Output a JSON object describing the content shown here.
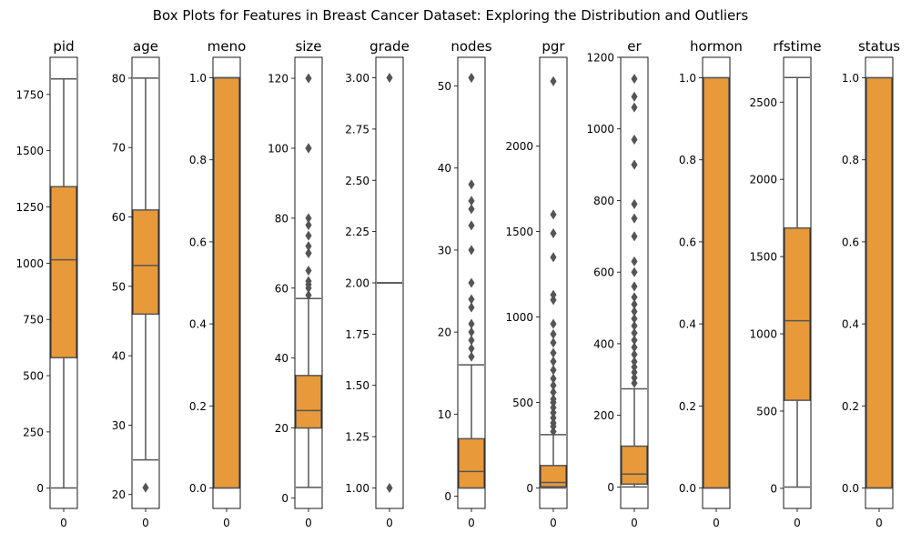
{
  "suptitle": "Box Plots for Features in Breast Cancer Dataset: Exploring the Distribution and Outliers",
  "style": {
    "box_color": "#e8993a",
    "line_color": "#555555",
    "axis_color": "#000000",
    "outlier_color": "#555555"
  },
  "chart_data": [
    {
      "type": "box",
      "title": "pid",
      "category": "0",
      "ylim": [
        -90,
        1915
      ],
      "ticks": [
        0,
        250,
        500,
        750,
        1000,
        1250,
        1500,
        1750
      ],
      "tick_labels": [
        "0",
        "250",
        "500",
        "750",
        "1000",
        "1250",
        "1500",
        "1750"
      ],
      "whisker_low": 1,
      "q1": 580,
      "median": 1015,
      "q3": 1340,
      "whisker_high": 1819,
      "outliers": []
    },
    {
      "type": "box",
      "title": "age",
      "category": "0",
      "ylim": [
        18,
        83
      ],
      "ticks": [
        20,
        30,
        40,
        50,
        60,
        70,
        80
      ],
      "tick_labels": [
        "20",
        "30",
        "40",
        "50",
        "60",
        "70",
        "80"
      ],
      "whisker_low": 25,
      "q1": 46,
      "median": 53,
      "q3": 61,
      "whisker_high": 80,
      "outliers": [
        21
      ]
    },
    {
      "type": "box",
      "title": "meno",
      "category": "0",
      "ylim": [
        -0.05,
        1.05
      ],
      "ticks": [
        0.0,
        0.2,
        0.4,
        0.6,
        0.8,
        1.0
      ],
      "tick_labels": [
        "0.0",
        "0.2",
        "0.4",
        "0.6",
        "0.8",
        "1.0"
      ],
      "whisker_low": 0,
      "q1": 0,
      "median": 1,
      "q3": 1,
      "whisker_high": 1,
      "outliers": []
    },
    {
      "type": "box",
      "title": "size",
      "category": "0",
      "ylim": [
        -3,
        126
      ],
      "ticks": [
        0,
        20,
        40,
        60,
        80,
        100,
        120
      ],
      "tick_labels": [
        "0",
        "20",
        "40",
        "60",
        "80",
        "100",
        "120"
      ],
      "whisker_low": 3,
      "q1": 20,
      "median": 25,
      "q3": 35,
      "whisker_high": 57,
      "outliers": [
        58,
        60,
        61,
        62,
        65,
        70,
        70,
        72,
        75,
        78,
        80,
        100,
        100,
        120
      ]
    },
    {
      "type": "box",
      "title": "grade",
      "category": "0",
      "ylim": [
        0.9,
        3.1
      ],
      "ticks": [
        1.0,
        1.25,
        1.5,
        1.75,
        2.0,
        2.25,
        2.5,
        2.75,
        3.0
      ],
      "tick_labels": [
        "1.00",
        "1.25",
        "1.50",
        "1.75",
        "2.00",
        "2.25",
        "2.50",
        "2.75",
        "3.00"
      ],
      "whisker_low": 2,
      "q1": 2,
      "median": 2,
      "q3": 2,
      "whisker_high": 2,
      "outliers": [
        1,
        3
      ]
    },
    {
      "type": "box",
      "title": "nodes",
      "category": "0",
      "ylim": [
        -1.5,
        53.5
      ],
      "ticks": [
        0,
        10,
        20,
        30,
        40,
        50
      ],
      "tick_labels": [
        "0",
        "10",
        "20",
        "30",
        "40",
        "50"
      ],
      "whisker_low": 1,
      "q1": 1,
      "median": 3,
      "q3": 7,
      "whisker_high": 16,
      "outliers": [
        17,
        18,
        19,
        20,
        21,
        23,
        24,
        26,
        30,
        33,
        35,
        36,
        38,
        51
      ]
    },
    {
      "type": "box",
      "title": "pgr",
      "category": "0",
      "ylim": [
        -120,
        2520
      ],
      "ticks": [
        0,
        500,
        1000,
        1500,
        2000
      ],
      "tick_labels": [
        "0",
        "500",
        "1000",
        "1500",
        "2000"
      ],
      "whisker_low": 0,
      "q1": 7,
      "median": 32,
      "q3": 131,
      "whisker_high": 312,
      "outliers": [
        330,
        360,
        380,
        410,
        440,
        470,
        500,
        520,
        560,
        600,
        640,
        690,
        740,
        790,
        850,
        900,
        960,
        1100,
        1130,
        1350,
        1490,
        1600,
        2380
      ]
    },
    {
      "type": "box",
      "title": "er",
      "category": "0",
      "ylim": [
        -60,
        1200
      ],
      "ticks": [
        0,
        200,
        400,
        600,
        800,
        1000,
        1200
      ],
      "tick_labels": [
        "0",
        "200",
        "400",
        "600",
        "800",
        "1000",
        "1200"
      ],
      "whisker_low": 0,
      "q1": 8,
      "median": 36,
      "q3": 114,
      "whisker_high": 274,
      "outliers": [
        290,
        305,
        320,
        335,
        350,
        370,
        390,
        410,
        430,
        450,
        470,
        490,
        510,
        530,
        560,
        600,
        630,
        700,
        750,
        790,
        900,
        970,
        1060,
        1090,
        1140
      ]
    },
    {
      "type": "box",
      "title": "hormon",
      "category": "0",
      "ylim": [
        -0.05,
        1.05
      ],
      "ticks": [
        0.0,
        0.2,
        0.4,
        0.6,
        0.8,
        1.0
      ],
      "tick_labels": [
        "0.0",
        "0.2",
        "0.4",
        "0.6",
        "0.8",
        "1.0"
      ],
      "whisker_low": 0,
      "q1": 0,
      "median": 0,
      "q3": 1,
      "whisker_high": 1,
      "outliers": []
    },
    {
      "type": "box",
      "title": "rfstime",
      "category": "0",
      "ylim": [
        -130,
        2790
      ],
      "ticks": [
        0,
        500,
        1000,
        1500,
        2000,
        2500
      ],
      "tick_labels": [
        "0",
        "500",
        "1000",
        "1500",
        "2000",
        "2500"
      ],
      "whisker_low": 8,
      "q1": 570,
      "median": 1085,
      "q3": 1685,
      "whisker_high": 2659,
      "outliers": []
    },
    {
      "type": "box",
      "title": "status",
      "category": "0",
      "ylim": [
        -0.05,
        1.05
      ],
      "ticks": [
        0.0,
        0.2,
        0.4,
        0.6,
        0.8,
        1.0
      ],
      "tick_labels": [
        "0.0",
        "0.2",
        "0.4",
        "0.6",
        "0.8",
        "1.0"
      ],
      "whisker_low": 0,
      "q1": 0,
      "median": 0,
      "q3": 1,
      "whisker_high": 1,
      "outliers": []
    }
  ]
}
